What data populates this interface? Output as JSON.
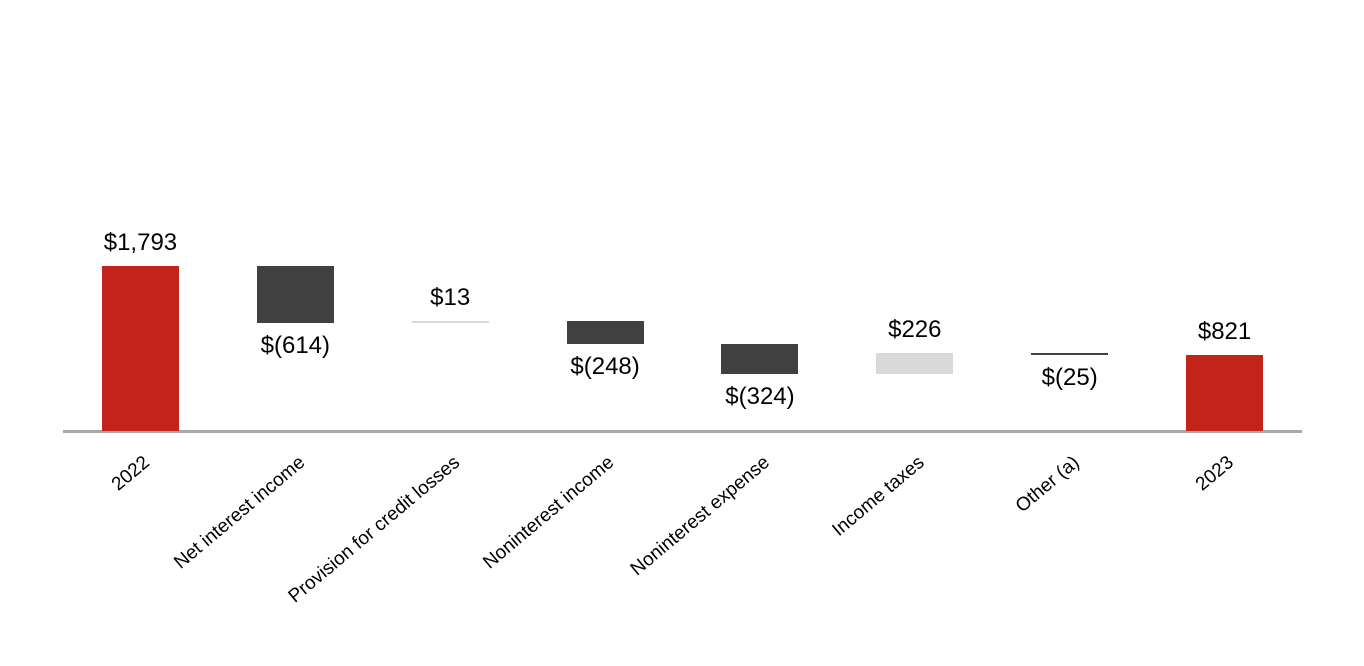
{
  "chart_data": {
    "type": "bar",
    "subtype": "waterfall",
    "title": "",
    "categories": [
      "2022",
      "Net interest income",
      "Provision for credit losses",
      "Noninterest income",
      "Noninterest expense",
      "Income taxes",
      "Other (a)",
      "2023"
    ],
    "values": [
      1793,
      -614,
      13,
      -248,
      -324,
      226,
      -25,
      821
    ],
    "data_labels": [
      "$1,793",
      "$(614)",
      "$13",
      "$(248)",
      "$(324)",
      "$226",
      "$(25)",
      "$821"
    ],
    "roles": [
      "total",
      "decrease",
      "increase",
      "decrease",
      "decrease",
      "increase",
      "decrease",
      "total"
    ],
    "running_totals": [
      1793,
      1179,
      1192,
      944,
      620,
      846,
      821,
      821
    ],
    "ylim": [
      0,
      1793
    ],
    "grid": false,
    "legend": false,
    "xlabel": "",
    "ylabel": "",
    "colors": {
      "total": "#c2241a",
      "decrease": "#404040",
      "increase": "#d9d9d9",
      "axis_line": "#a8a8a8",
      "label_text": "#000000"
    }
  }
}
